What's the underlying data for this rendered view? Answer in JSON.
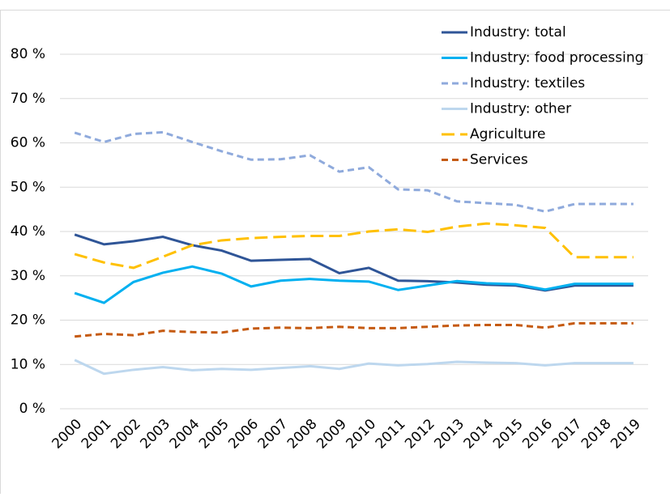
{
  "chart_data": {
    "type": "line",
    "categories": [
      "2000",
      "2001",
      "2002",
      "2003",
      "2004",
      "2005",
      "2006",
      "2007",
      "2008",
      "2009",
      "2010",
      "2011",
      "2012",
      "2013",
      "2014",
      "2015",
      "2016",
      "2017",
      "2018",
      "2019"
    ],
    "series": [
      {
        "name": "Industry: total",
        "color": "#2f5597",
        "dash": "solid",
        "values": [
          39.3,
          37.1,
          37.8,
          38.8,
          36.9,
          35.7,
          33.4,
          33.6,
          33.8,
          30.6,
          31.8,
          28.9,
          28.8,
          28.5,
          28.0,
          27.8,
          26.7,
          27.8,
          27.8,
          27.8
        ]
      },
      {
        "name": "Industry: food processing",
        "color": "#00b0f0",
        "dash": "solid",
        "values": [
          26.1,
          23.9,
          28.6,
          30.7,
          32.1,
          30.5,
          27.6,
          28.9,
          29.3,
          28.9,
          28.7,
          26.8,
          27.8,
          28.8,
          28.3,
          28.1,
          26.9,
          28.2,
          28.2,
          28.2
        ]
      },
      {
        "name": "Industry: textiles",
        "color": "#8faadc",
        "dash": "dash",
        "values": [
          62.3,
          60.2,
          62.0,
          62.4,
          60.2,
          58.1,
          56.2,
          56.3,
          57.2,
          53.5,
          54.5,
          49.5,
          49.3,
          46.8,
          46.4,
          46.0,
          44.5,
          46.2,
          46.2,
          46.2
        ]
      },
      {
        "name": "Industry: other",
        "color": "#bdd7ee",
        "dash": "solid",
        "values": [
          11.0,
          7.9,
          8.8,
          9.4,
          8.7,
          9.0,
          8.8,
          9.2,
          9.6,
          9.0,
          10.2,
          9.8,
          10.1,
          10.6,
          10.4,
          10.3,
          9.8,
          10.3,
          10.3,
          10.3
        ]
      },
      {
        "name": "Agriculture",
        "color": "#ffc000",
        "dash": "longdash",
        "values": [
          34.9,
          33.0,
          31.8,
          34.3,
          36.9,
          38.0,
          38.5,
          38.8,
          39.0,
          39.0,
          40.0,
          40.5,
          39.9,
          41.1,
          41.8,
          41.4,
          40.8,
          34.2,
          34.2,
          34.2
        ]
      },
      {
        "name": "Services",
        "color": "#c55a11",
        "dash": "dash",
        "values": [
          16.3,
          16.9,
          16.6,
          17.6,
          17.3,
          17.2,
          18.1,
          18.3,
          18.2,
          18.5,
          18.2,
          18.2,
          18.5,
          18.8,
          18.9,
          18.9,
          18.3,
          19.3,
          19.3,
          19.3
        ]
      }
    ],
    "ylim": [
      0,
      80
    ],
    "yticks": [
      {
        "value": 0,
        "label": "0 %"
      },
      {
        "value": 10,
        "label": "10 %"
      },
      {
        "value": 20,
        "label": "20 %"
      },
      {
        "value": 30,
        "label": "30 %"
      },
      {
        "value": 40,
        "label": "40 %"
      },
      {
        "value": 50,
        "label": "50 %"
      },
      {
        "value": 60,
        "label": "60 %"
      },
      {
        "value": 70,
        "label": "70 %"
      },
      {
        "value": 80,
        "label": "80 %"
      }
    ],
    "grid": true,
    "legend": "top-right"
  }
}
